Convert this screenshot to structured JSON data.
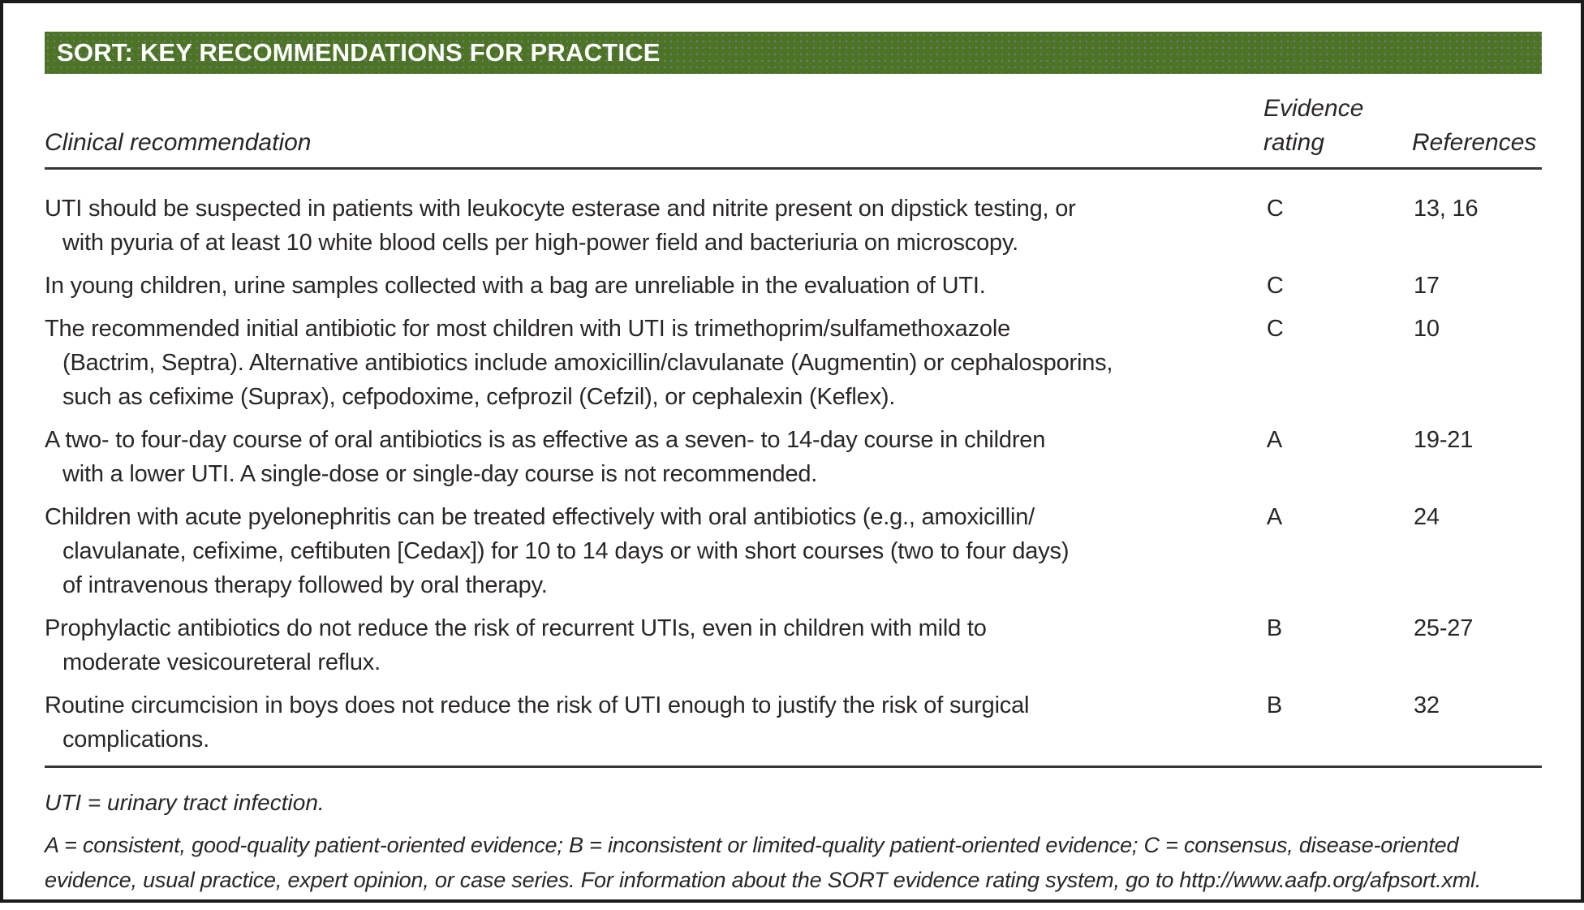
{
  "title_bar": {
    "title": "SORT: KEY RECOMMENDATIONS FOR PRACTICE"
  },
  "colors": {
    "header_bg": "#4c7423",
    "header_text": "#ffffff",
    "body_text": "#2a2627"
  },
  "table": {
    "columns": [
      "Clinical recommendation",
      "Evidence\nrating",
      "References"
    ],
    "rows": [
      {
        "recommendation": "UTI should be suspected in patients with leukocyte esterase and nitrite present on dipstick testing, or\nwith pyuria of at least 10 white blood cells per high-power field and bacteriuria on microscopy.",
        "rating": "C",
        "references": "13, 16"
      },
      {
        "recommendation": "In young children, urine samples collected with a bag are unreliable in the evaluation of UTI.",
        "rating": "C",
        "references": "17"
      },
      {
        "recommendation": "The recommended initial antibiotic for most children with UTI is trimethoprim/sulfamethoxazole\n(Bactrim, Septra). Alternative antibiotics include amoxicillin/clavulanate (Augmentin) or cephalosporins,\nsuch as cefixime (Suprax), cefpodoxime, cefprozil (Cefzil), or cephalexin (Keflex).",
        "rating": "C",
        "references": "10"
      },
      {
        "recommendation": "A two- to four-day course of oral antibiotics is as effective as a seven- to 14-day course in children\nwith a lower UTI. A single-dose or single-day course is not recommended.",
        "rating": "A",
        "references": "19-21"
      },
      {
        "recommendation": "Children with acute pyelonephritis can be treated effectively with oral antibiotics (e.g., amoxicillin/\nclavulanate, cefixime, ceftibuten [Cedax]) for 10 to 14 days or with short courses (two to four days)\nof intravenous therapy followed by oral therapy.",
        "rating": "A",
        "references": "24"
      },
      {
        "recommendation": "Prophylactic antibiotics do not reduce the risk of recurrent UTIs, even in children with mild to\nmoderate vesicoureteral reflux.",
        "rating": "B",
        "references": "25-27"
      },
      {
        "recommendation": "Routine circumcision in boys does not reduce the risk of UTI enough to justify the risk of surgical\ncomplications.",
        "rating": "B",
        "references": "32"
      }
    ]
  },
  "footnotes": {
    "abbreviation": "UTI = urinary tract infection.",
    "rating_key": "A = consistent, good-quality patient-oriented evidence; B = inconsistent or limited-quality patient-oriented evidence; C = consensus, disease-oriented\nevidence, usual practice, expert opinion, or case series. For information about the SORT evidence rating system, go to http://www.aafp.org/afpsort.xml."
  }
}
